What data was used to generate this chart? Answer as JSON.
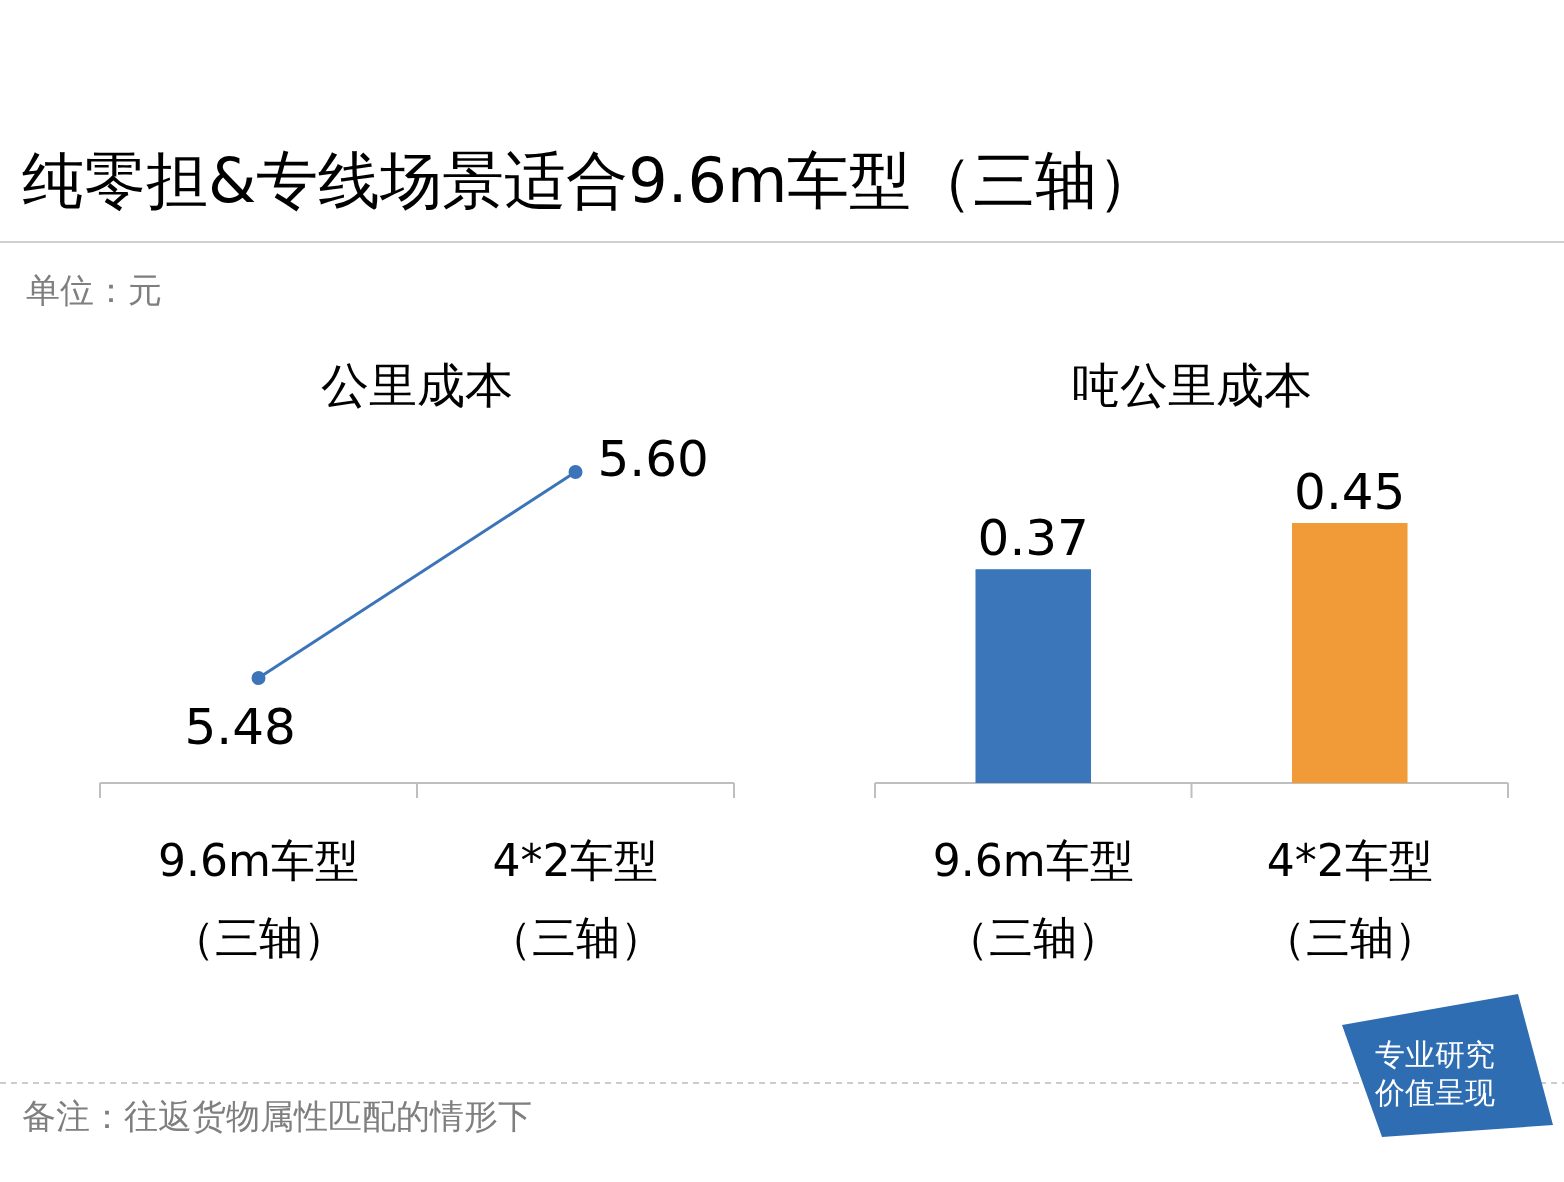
{
  "chart_data": [
    {
      "type": "other",
      "title": "纯零担&专线场景适合9.6m车型（三轴）",
      "subtitle": "单位：元",
      "annotations": [
        "备注：往返货物属性匹配的情形下",
        "专业研究价值呈现"
      ]
    },
    {
      "type": "line",
      "title": "公里成本",
      "categories": [
        "9.6m车型（三轴）",
        "4*2车型（三轴）"
      ],
      "series": [
        {
          "color": "#3b74b8",
          "values": [
            5.48,
            5.6
          ],
          "value_labels": [
            "5.48",
            "5.60"
          ]
        }
      ],
      "marker": "circle"
    },
    {
      "type": "bar",
      "title": "吨公里成本",
      "categories": [
        "9.6m车型（三轴）",
        "4*2车型（三轴）"
      ],
      "values": [
        0.37,
        0.45
      ],
      "colors": [
        "#3a76b9",
        "#f09b38"
      ],
      "data_labels": true
    }
  ]
}
